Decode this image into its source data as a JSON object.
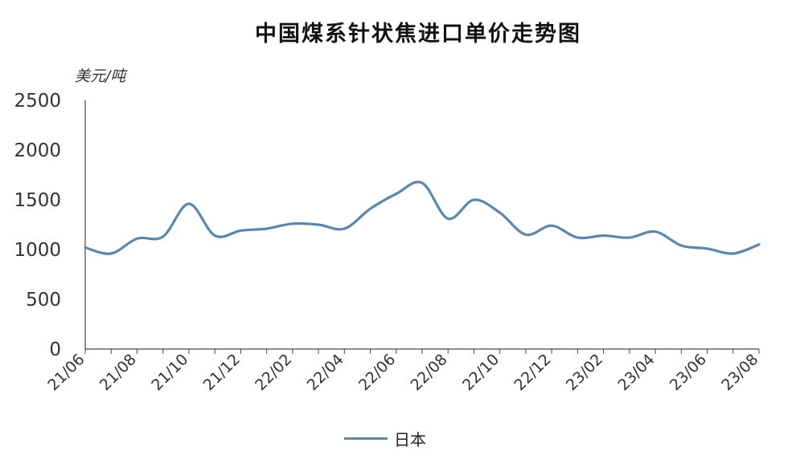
{
  "chart_data": {
    "type": "line",
    "title": "中国煤系针状焦进口单价走势图",
    "ylabel": "美元/吨",
    "xlabel": "",
    "ylim": [
      0,
      2500
    ],
    "yticks": [
      0,
      500,
      1000,
      1500,
      2000,
      2500
    ],
    "xtick_labels": [
      "21/06",
      "21/08",
      "21/10",
      "21/12",
      "22/02",
      "22/04",
      "22/06",
      "22/08",
      "22/10",
      "22/12",
      "23/02",
      "23/04",
      "23/06",
      "23/08"
    ],
    "x": [
      "21/06",
      "21/07",
      "21/08",
      "21/09",
      "21/10",
      "21/11",
      "21/12",
      "22/01",
      "22/02",
      "22/03",
      "22/04",
      "22/05",
      "22/06",
      "22/07",
      "22/08",
      "22/09",
      "22/10",
      "22/11",
      "22/12",
      "23/01",
      "23/02",
      "23/03",
      "23/04",
      "23/05",
      "23/06",
      "23/07",
      "23/08"
    ],
    "series": [
      {
        "name": "日本",
        "color": "#5b87ad",
        "values": [
          1020,
          960,
          1110,
          1130,
          1460,
          1140,
          1190,
          1210,
          1260,
          1250,
          1210,
          1410,
          1560,
          1670,
          1310,
          1500,
          1370,
          1150,
          1240,
          1120,
          1140,
          1120,
          1180,
          1040,
          1010,
          960,
          1050
        ]
      }
    ],
    "grid": false,
    "legend_position": "bottom-center"
  }
}
